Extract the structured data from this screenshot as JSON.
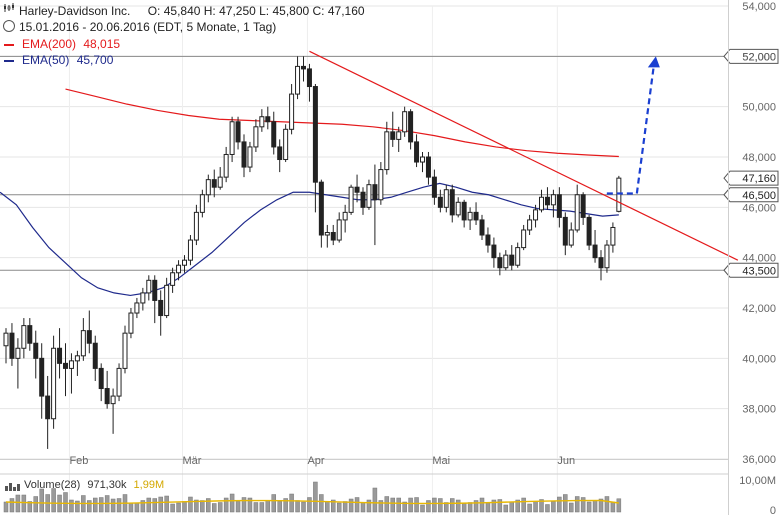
{
  "header": {
    "title": "Harley-Davidson Inc.",
    "ohlc": "O: 45,840  H: 47,250  L: 45,800  C: 47,160",
    "range": "15.01.2016 - 20.06.2016 (EDT, 5 Monate, 1 Tag)",
    "ema200_label": "EMA(200)",
    "ema200_value": "48,015",
    "ema50_label": "EMA(50)",
    "ema50_value": "45,700"
  },
  "volume": {
    "label": "Volume(28)",
    "value": "971,30k",
    "avg": "1,99M",
    "axis_top": "10,00M",
    "axis_zero": "0"
  },
  "colors": {
    "ema200": "#e41a1c",
    "ema50": "#1f2a8c",
    "trendline": "#e41a1c",
    "arrow": "#1a3fd1",
    "candle": "#222222",
    "volume_bar": "#9a9a9a",
    "volume_avg": "#e8b800"
  },
  "chart_data": {
    "type": "candlestick",
    "title": "Harley-Davidson Inc.",
    "ylim": [
      36,
      54
    ],
    "y_ticks": [
      "54,000",
      "52,000",
      "50,000",
      "48,000",
      "46,000",
      "44,000",
      "42,000",
      "40,000",
      "38,000",
      "36,000"
    ],
    "x_ticks": [
      "Feb",
      "Mär",
      "Apr",
      "Mai",
      "Jun"
    ],
    "x_tick_trading_days": [
      11,
      30,
      51,
      72,
      93
    ],
    "boxed_levels": [
      {
        "label": "52,000",
        "value": 52.0,
        "line": true
      },
      {
        "label": "47,160",
        "value": 47.16,
        "line": false
      },
      {
        "label": "46,500",
        "value": 46.5,
        "line": true
      },
      {
        "label": "43,500",
        "value": 43.5,
        "line": true
      }
    ],
    "candles": [
      [
        40.5,
        41.2,
        39.8,
        41.0
      ],
      [
        41.0,
        41.4,
        39.7,
        40.0
      ],
      [
        40.0,
        40.8,
        38.8,
        40.4
      ],
      [
        40.4,
        41.6,
        40.0,
        41.3
      ],
      [
        41.3,
        41.6,
        40.3,
        40.6
      ],
      [
        40.6,
        41.1,
        39.2,
        40.0
      ],
      [
        40.0,
        40.6,
        37.6,
        38.5
      ],
      [
        38.5,
        39.3,
        36.4,
        37.6
      ],
      [
        37.6,
        40.9,
        37.2,
        40.4
      ],
      [
        40.4,
        41.2,
        39.2,
        39.8
      ],
      [
        39.8,
        40.6,
        38.5,
        39.6
      ],
      [
        39.6,
        40.2,
        38.6,
        39.9
      ],
      [
        39.9,
        40.3,
        39.3,
        40.1
      ],
      [
        40.1,
        41.6,
        39.9,
        41.1
      ],
      [
        41.1,
        41.9,
        40.2,
        40.6
      ],
      [
        40.6,
        40.9,
        39.1,
        39.6
      ],
      [
        39.6,
        39.8,
        38.3,
        38.8
      ],
      [
        38.8,
        39.5,
        38.0,
        38.2
      ],
      [
        38.2,
        38.8,
        37.0,
        38.5
      ],
      [
        38.5,
        39.8,
        38.3,
        39.6
      ],
      [
        39.6,
        41.3,
        39.4,
        41.0
      ],
      [
        41.0,
        42.0,
        40.8,
        41.8
      ],
      [
        41.8,
        42.4,
        41.6,
        42.2
      ],
      [
        42.2,
        42.8,
        41.9,
        42.6
      ],
      [
        42.6,
        43.3,
        42.3,
        43.1
      ],
      [
        43.1,
        43.3,
        41.4,
        42.3
      ],
      [
        42.3,
        42.7,
        40.9,
        41.7
      ],
      [
        41.7,
        43.2,
        41.6,
        42.9
      ],
      [
        42.9,
        43.6,
        42.6,
        43.4
      ],
      [
        43.4,
        43.9,
        43.1,
        43.7
      ],
      [
        43.7,
        44.1,
        43.4,
        43.9
      ],
      [
        43.9,
        44.9,
        43.7,
        44.7
      ],
      [
        44.7,
        46.1,
        44.5,
        45.8
      ],
      [
        45.8,
        46.7,
        45.6,
        46.5
      ],
      [
        46.5,
        47.3,
        46.2,
        47.1
      ],
      [
        47.1,
        47.5,
        46.4,
        46.8
      ],
      [
        46.8,
        47.6,
        46.7,
        47.2
      ],
      [
        47.2,
        48.4,
        47.0,
        48.1
      ],
      [
        48.1,
        49.6,
        47.8,
        49.4
      ],
      [
        49.4,
        49.6,
        48.3,
        48.6
      ],
      [
        48.6,
        48.9,
        47.2,
        47.6
      ],
      [
        47.6,
        48.6,
        47.4,
        48.4
      ],
      [
        48.4,
        49.5,
        48.2,
        49.2
      ],
      [
        49.2,
        49.9,
        49.0,
        49.6
      ],
      [
        49.6,
        50.0,
        49.1,
        49.4
      ],
      [
        49.4,
        49.8,
        48.1,
        48.4
      ],
      [
        48.4,
        48.7,
        47.4,
        47.9
      ],
      [
        47.9,
        49.3,
        47.8,
        49.1
      ],
      [
        49.1,
        50.9,
        48.9,
        50.5
      ],
      [
        50.5,
        52.0,
        50.3,
        51.6
      ],
      [
        51.6,
        52.0,
        51.0,
        51.5
      ],
      [
        51.5,
        51.7,
        50.2,
        50.8
      ],
      [
        50.8,
        50.9,
        45.8,
        47.0
      ],
      [
        47.0,
        47.1,
        44.4,
        44.9
      ],
      [
        44.9,
        45.3,
        44.4,
        45.0
      ],
      [
        45.0,
        45.3,
        44.5,
        44.7
      ],
      [
        44.7,
        45.8,
        44.6,
        45.5
      ],
      [
        45.5,
        46.1,
        45.0,
        45.8
      ],
      [
        45.8,
        46.9,
        45.7,
        46.8
      ],
      [
        46.8,
        47.3,
        46.2,
        46.6
      ],
      [
        46.6,
        46.8,
        45.7,
        46.0
      ],
      [
        46.0,
        47.1,
        45.9,
        46.9
      ],
      [
        46.9,
        47.7,
        44.5,
        46.3
      ],
      [
        46.3,
        47.8,
        46.1,
        47.5
      ],
      [
        47.5,
        49.4,
        47.3,
        49.0
      ],
      [
        49.0,
        49.8,
        48.4,
        48.7
      ],
      [
        48.7,
        49.2,
        48.2,
        49.0
      ],
      [
        49.0,
        50.0,
        48.8,
        49.8
      ],
      [
        49.8,
        49.9,
        48.3,
        48.6
      ],
      [
        48.6,
        48.9,
        47.6,
        47.8
      ],
      [
        47.8,
        48.2,
        47.4,
        48.0
      ],
      [
        48.0,
        48.2,
        46.9,
        47.2
      ],
      [
        47.2,
        47.5,
        46.1,
        46.4
      ],
      [
        46.4,
        46.7,
        45.8,
        46.0
      ],
      [
        46.0,
        46.9,
        45.8,
        46.7
      ],
      [
        46.7,
        46.9,
        45.4,
        45.7
      ],
      [
        45.7,
        46.4,
        45.6,
        46.2
      ],
      [
        46.2,
        46.3,
        45.2,
        45.5
      ],
      [
        45.5,
        46.0,
        45.1,
        45.8
      ],
      [
        45.8,
        46.2,
        45.3,
        45.5
      ],
      [
        45.5,
        45.7,
        44.7,
        44.9
      ],
      [
        44.9,
        45.2,
        44.2,
        44.5
      ],
      [
        44.5,
        44.8,
        43.6,
        44.0
      ],
      [
        44.0,
        44.2,
        43.3,
        43.6
      ],
      [
        43.6,
        44.3,
        43.5,
        44.1
      ],
      [
        44.1,
        44.5,
        43.5,
        43.7
      ],
      [
        43.7,
        44.6,
        43.6,
        44.4
      ],
      [
        44.4,
        45.3,
        44.3,
        45.1
      ],
      [
        45.1,
        45.7,
        44.9,
        45.5
      ],
      [
        45.5,
        46.1,
        45.2,
        45.9
      ],
      [
        45.9,
        46.7,
        45.8,
        46.4
      ],
      [
        46.4,
        46.8,
        45.9,
        46.1
      ],
      [
        46.1,
        46.7,
        45.6,
        46.5
      ],
      [
        46.5,
        46.8,
        45.2,
        45.6
      ],
      [
        45.6,
        45.8,
        44.1,
        44.5
      ],
      [
        44.5,
        45.4,
        44.4,
        45.1
      ],
      [
        45.1,
        46.9,
        45.0,
        46.5
      ],
      [
        46.5,
        46.6,
        45.3,
        45.6
      ],
      [
        45.6,
        45.7,
        44.3,
        44.5
      ],
      [
        44.5,
        45.1,
        43.8,
        44.0
      ],
      [
        44.0,
        44.3,
        43.1,
        43.6
      ],
      [
        43.6,
        44.7,
        43.4,
        44.5
      ],
      [
        44.5,
        45.4,
        44.2,
        45.2
      ],
      [
        45.84,
        47.25,
        45.8,
        47.16
      ]
    ],
    "ema50": [
      46.6,
      46.1,
      45.2,
      44.4,
      43.8,
      43.2,
      42.8,
      42.6,
      42.5,
      42.6,
      42.8,
      43.2,
      43.7,
      44.2,
      44.8,
      45.4,
      45.9,
      46.3,
      46.6,
      46.6,
      46.5,
      46.4,
      46.3,
      46.3,
      46.4,
      46.6,
      46.8,
      46.95,
      46.8,
      46.6,
      46.5,
      46.3,
      46.1,
      45.95,
      45.9,
      45.85,
      45.75,
      45.65,
      45.7
    ],
    "ema200": [
      50.7,
      50.4,
      50.1,
      49.85,
      49.65,
      49.5,
      49.45,
      49.4,
      49.35,
      49.3,
      49.2,
      49.05,
      48.85,
      48.6,
      48.4,
      48.25,
      48.15,
      48.08,
      48.02
    ],
    "trendline": {
      "from": [
        51,
        52.2
      ],
      "to": [
        123,
        43.9
      ]
    },
    "projection_target": 52.0
  }
}
